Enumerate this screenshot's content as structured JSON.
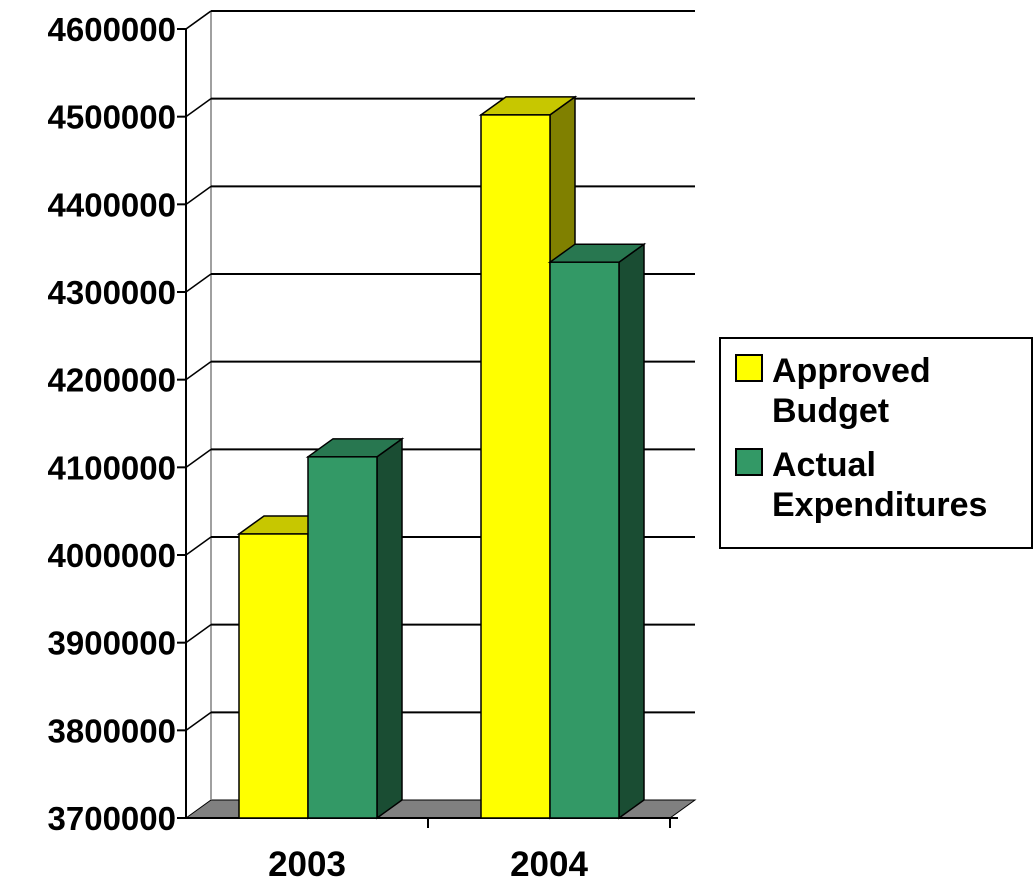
{
  "chart_data": {
    "type": "bar",
    "categories": [
      "2003",
      "2004"
    ],
    "series": [
      {
        "name": "Approved Budget",
        "values": [
          4024000,
          4502000
        ],
        "color": "#FFFF00"
      },
      {
        "name": "Actual Expenditures",
        "values": [
          4112000,
          4334000
        ],
        "color": "#339966"
      }
    ],
    "title": "",
    "xlabel": "",
    "ylabel": "",
    "ylim": [
      3700000,
      4600000
    ],
    "yticks": [
      "3700000",
      "3800000",
      "3900000",
      "4000000",
      "4100000",
      "4200000",
      "4300000",
      "4400000",
      "4500000",
      "4600000"
    ],
    "grid": true,
    "legend_position": "right",
    "legend_labels": [
      [
        "Approved",
        "Budget"
      ],
      [
        "Actual",
        "Expenditures"
      ]
    ],
    "style": "3d-clustered-column"
  }
}
